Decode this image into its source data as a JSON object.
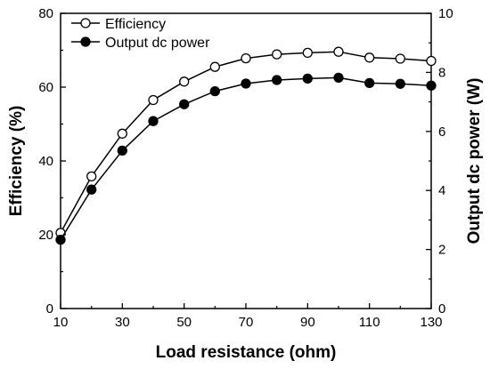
{
  "chart_data": {
    "type": "line",
    "xlabel": "Load resistance (ohm)",
    "ylabel_left": "Efficiency (%)",
    "ylabel_right": "Output dc power (W)",
    "x": [
      10,
      20,
      30,
      40,
      50,
      60,
      70,
      80,
      90,
      100,
      110,
      120,
      130
    ],
    "xlim": [
      10,
      130
    ],
    "x_ticks": [
      10,
      30,
      50,
      70,
      90,
      110,
      130
    ],
    "ylim_left": [
      0,
      80
    ],
    "y_ticks_left": [
      0,
      20,
      40,
      60,
      80
    ],
    "ylim_right": [
      0,
      10
    ],
    "y_ticks_right": [
      0,
      2,
      4,
      6,
      8,
      10
    ],
    "grid": false,
    "legend_position": "top-left",
    "series": [
      {
        "name": "Efficiency",
        "axis": "left",
        "marker": "open-circle",
        "values": [
          20.5,
          35.8,
          47.4,
          56.5,
          61.5,
          65.5,
          67.8,
          68.9,
          69.3,
          69.6,
          68.0,
          67.7,
          67.1
        ]
      },
      {
        "name": "Output dc power",
        "axis": "right",
        "marker": "filled-circle",
        "values": [
          2.33,
          4.03,
          5.35,
          6.35,
          6.92,
          7.36,
          7.62,
          7.74,
          7.79,
          7.82,
          7.64,
          7.61,
          7.55
        ]
      }
    ],
    "colors": {
      "line": "#000000",
      "open_marker_fill": "#ffffff",
      "filled_marker_fill": "#000000"
    }
  }
}
